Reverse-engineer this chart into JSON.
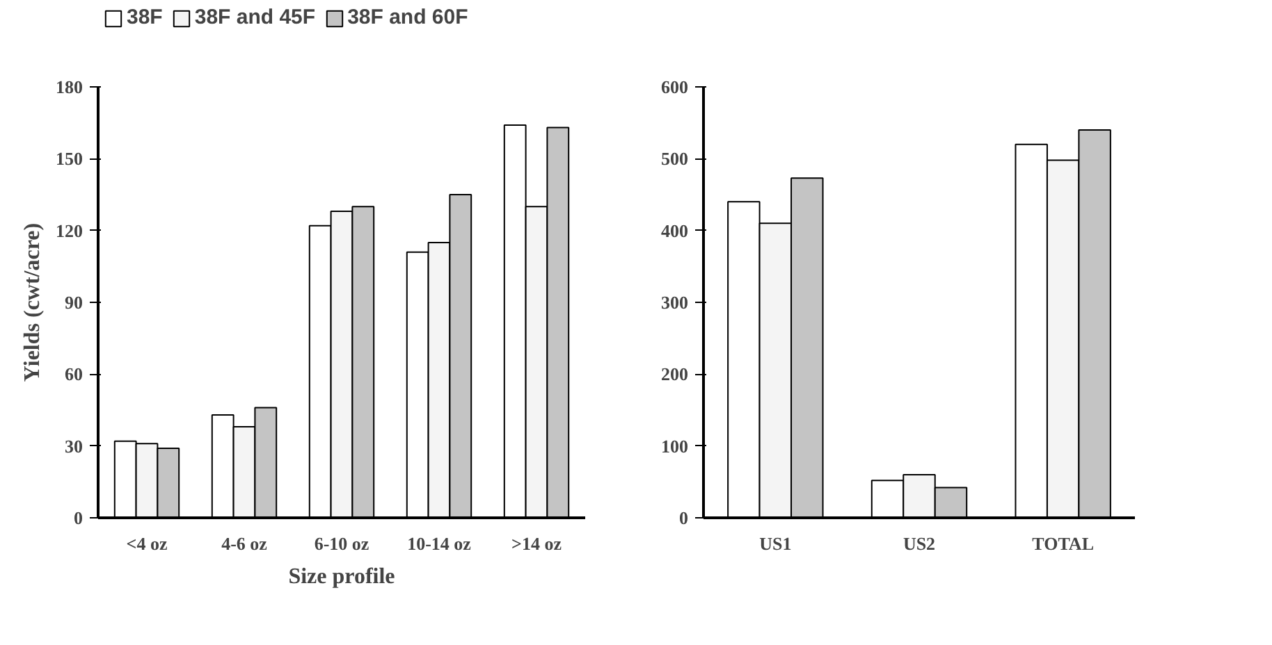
{
  "chart_data": [
    {
      "type": "bar",
      "xlabel": "Size profile",
      "ylabel": "Yields (cwt/acre)",
      "categories": [
        "<4 oz",
        "4-6 oz",
        "6-10 oz",
        "10-14 oz",
        ">14 oz"
      ],
      "series": [
        {
          "name": "38F",
          "color": "#ffffff",
          "values": [
            32,
            43,
            122,
            111,
            164
          ]
        },
        {
          "name": "38F and 45F",
          "color": "#f4f4f4",
          "values": [
            31,
            38,
            128,
            115,
            130
          ]
        },
        {
          "name": "38F and 60F",
          "color": "#c4c4c4",
          "values": [
            29,
            46,
            130,
            135,
            163
          ]
        }
      ],
      "ylim": [
        0,
        180
      ],
      "yticks": [
        0,
        30,
        60,
        90,
        120,
        150,
        180
      ],
      "grid": false,
      "legend": "top left"
    },
    {
      "type": "bar",
      "categories": [
        "US1",
        "US2",
        "TOTAL"
      ],
      "series": [
        {
          "color": "#ffffff",
          "values": [
            440,
            52,
            520
          ]
        },
        {
          "color": "#f4f4f4",
          "values": [
            410,
            60,
            498
          ]
        },
        {
          "color": "#c4c4c4",
          "values": [
            473,
            42,
            540
          ]
        }
      ],
      "ylim": [
        0,
        600
      ],
      "yticks": [
        0,
        100,
        200,
        300,
        400,
        500,
        600
      ],
      "grid": false,
      "legend": false
    }
  ]
}
